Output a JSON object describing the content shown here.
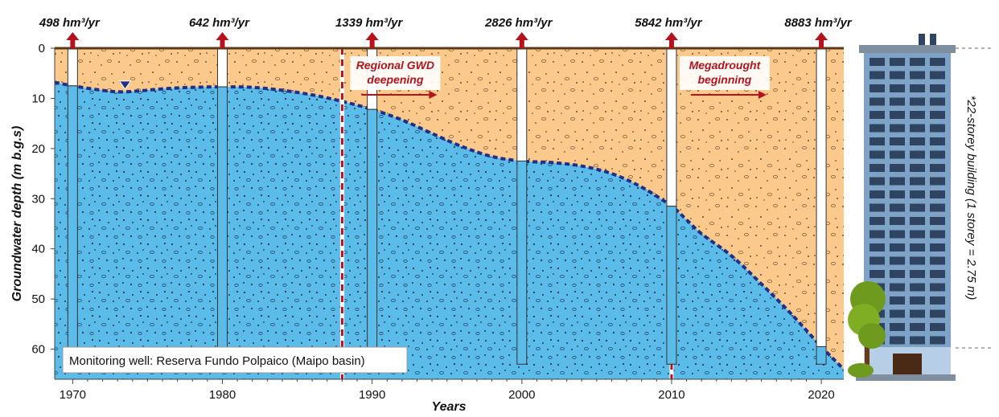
{
  "chart_data": {
    "type": "area",
    "xlabel": "Years",
    "ylabel": "Groundwater depth (m b.g.s)",
    "xlim": [
      1968.8,
      2021.5
    ],
    "ylim": [
      0,
      66
    ],
    "y_inverted": true,
    "x_ticks": [
      1970,
      1980,
      1990,
      2000,
      2010,
      2020
    ],
    "y_ticks": [
      0,
      10,
      20,
      30,
      40,
      50,
      60
    ],
    "groundwater_depth": {
      "x": [
        1968.8,
        1970,
        1971.5,
        1973,
        1974.5,
        1976,
        1978,
        1980,
        1982,
        1984,
        1986,
        1988,
        1990,
        1992,
        1994,
        1996,
        1998,
        2000,
        2002,
        2004,
        2006,
        2008,
        2010,
        2011,
        2012,
        2014,
        2016,
        2018,
        2020,
        2021.5
      ],
      "y": [
        6.8,
        7.5,
        8.2,
        8.7,
        8.5,
        8.1,
        7.8,
        7.7,
        7.8,
        8.4,
        9.3,
        10.6,
        12.2,
        14.3,
        17.0,
        19.6,
        21.6,
        22.5,
        22.8,
        23.5,
        25.0,
        27.7,
        31.5,
        34.2,
        37.0,
        41.4,
        47.0,
        53.0,
        59.5,
        64.0
      ]
    },
    "wells": [
      {
        "year": 1970,
        "label": "498 hm³/yr",
        "bottom": 64
      },
      {
        "year": 1980,
        "label": "642 hm³/yr",
        "bottom": 64
      },
      {
        "year": 1990,
        "label": "1339 hm³/yr",
        "bottom": 64
      },
      {
        "year": 2000,
        "label": "2826 hm³/yr",
        "bottom": 63
      },
      {
        "year": 2010,
        "label": "5842 hm³/yr",
        "bottom": 63
      },
      {
        "year": 2020,
        "label": "8883 hm³/yr",
        "bottom": 63
      }
    ],
    "markers": [
      {
        "year": 1988,
        "label_lines": [
          "Regional GWD",
          "deepening"
        ]
      },
      {
        "year": 2010,
        "label_lines": [
          "Megadrought",
          "beginning"
        ]
      }
    ],
    "water_table_marker_year": 1973.5,
    "note": "Monitoring well: Reserva Fundo Polpaico  (Maipo basin)",
    "building_label": "*22-storey building (1 storey = 2.75 m)",
    "colors": {
      "water": "#5bbbe9",
      "sediment": "#fbc98b",
      "water_table": "#1f2f8a",
      "arrow": "#b5121b",
      "ground": "#5a3a1a",
      "building": "#7fa3c6",
      "windows": "#2e4460",
      "tree": "#6e9a1e"
    }
  }
}
